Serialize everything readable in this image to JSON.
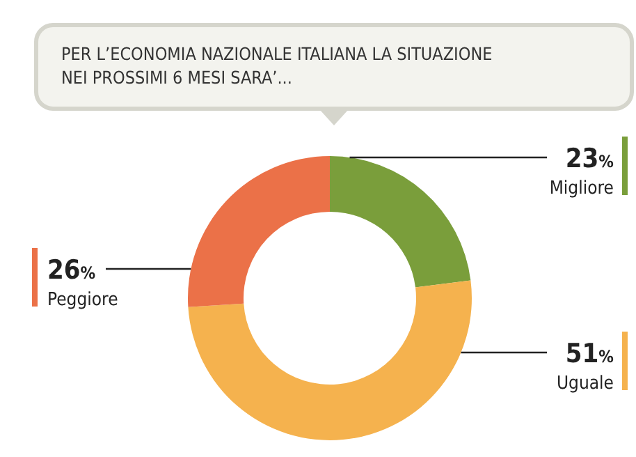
{
  "chart_data": {
    "type": "donut",
    "title": "PER L’ECONOMIA NAZIONALE ITALIANA LA  SITUAZIONE\nNEI PROSSIMI 6 MESI SARA’...",
    "categories": [
      "Migliore",
      "Uguale",
      "Peggiore"
    ],
    "values": [
      23,
      51,
      26
    ],
    "colors": [
      "#7a9e3b",
      "#f5b24e",
      "#eb7148"
    ],
    "value_labels": [
      "23%",
      "51%",
      "26%"
    ]
  }
}
